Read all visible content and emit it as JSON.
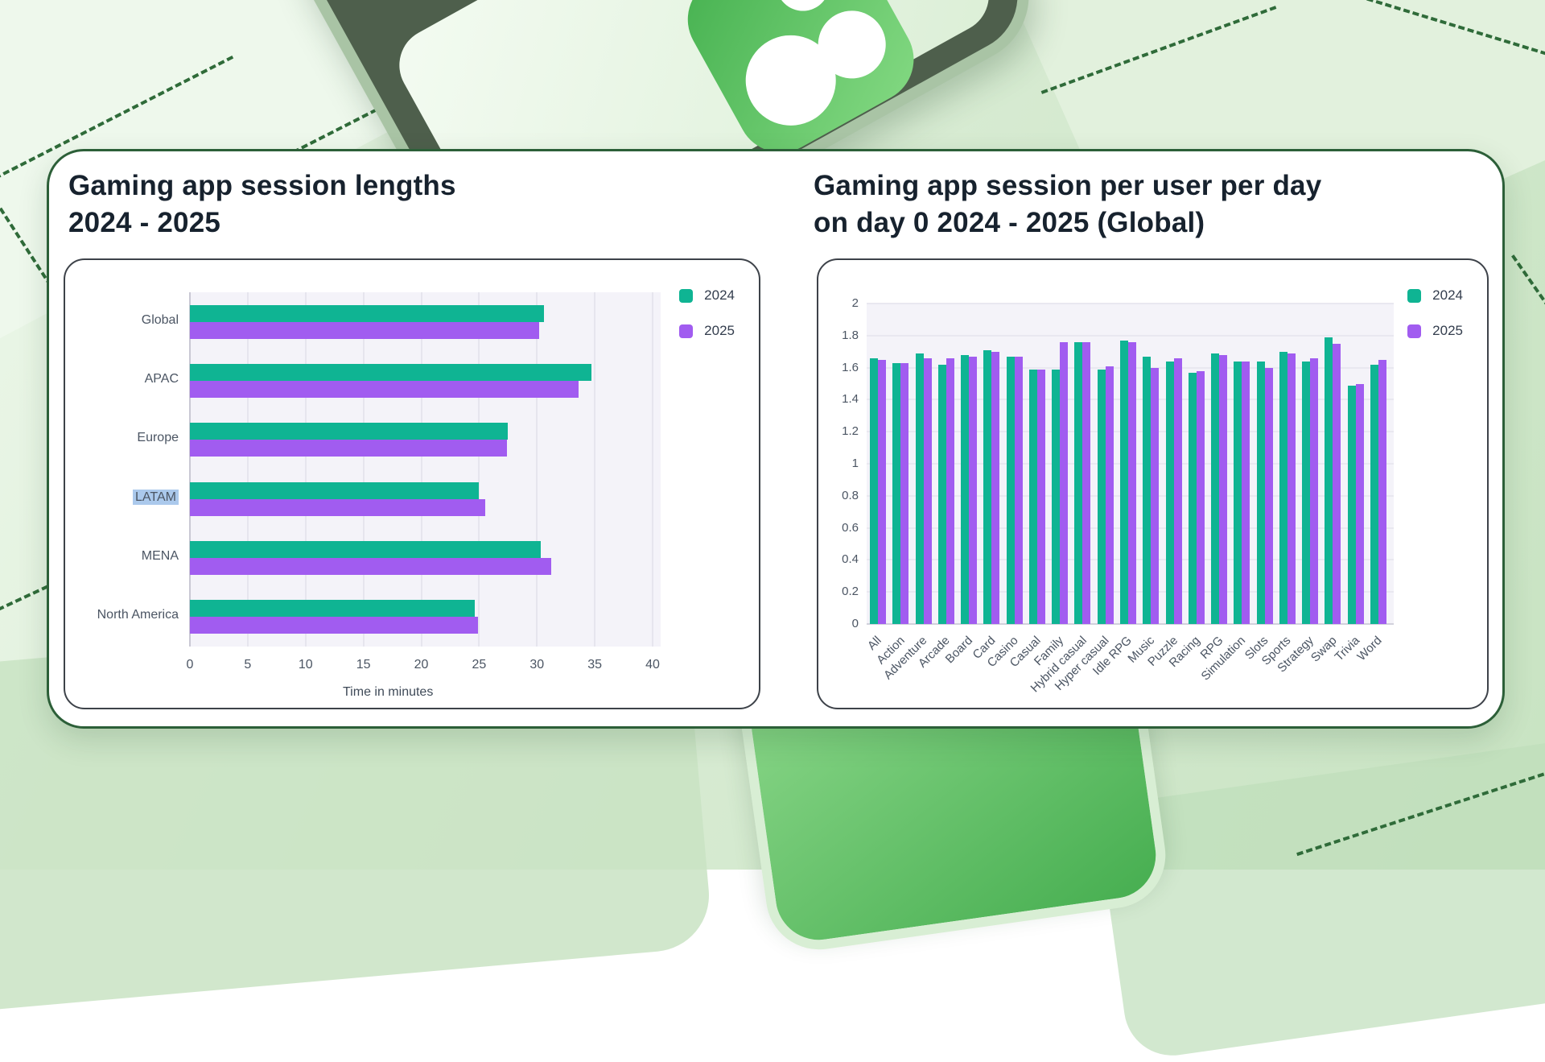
{
  "background": {
    "base_color": "#d9ecd4",
    "dash_line_color": "#2f6b39",
    "phone_color": "#57c45f",
    "decor": [
      "phone-front-mockup",
      "phone-back-mockup",
      "dashed-diamond-outlines"
    ]
  },
  "card": {
    "background": "#ffffff",
    "border_color": "#2c5f38"
  },
  "legend": {
    "items": [
      {
        "label": "2024",
        "color": "#0fb493"
      },
      {
        "label": "2025",
        "color": "#a15cf0"
      }
    ]
  },
  "chart_data": [
    {
      "type": "bar",
      "orientation": "horizontal",
      "title": "Gaming app session lengths 2024 - 2025",
      "title_lines": [
        "Gaming app session lengths",
        "2024 - 2025"
      ],
      "categories": [
        "Global",
        "APAC",
        "Europe",
        "LATAM",
        "MENA",
        "North America"
      ],
      "series": [
        {
          "name": "2024",
          "color": "#0fb493",
          "values": [
            30.6,
            34.7,
            27.5,
            25.0,
            30.3,
            24.6
          ]
        },
        {
          "name": "2025",
          "color": "#a15cf0",
          "values": [
            30.2,
            33.6,
            27.4,
            25.5,
            31.2,
            24.9
          ]
        }
      ],
      "xlabel": "Time in minutes",
      "xlim": [
        0,
        40
      ],
      "x_ticks": [
        0,
        5,
        10,
        15,
        20,
        25,
        30,
        35,
        40
      ],
      "grid": true,
      "legend_position": "top-right",
      "highlighted_category": "LATAM",
      "highlight_color": "#abc9ec"
    },
    {
      "type": "bar",
      "orientation": "vertical",
      "title": "Gaming app session per user per day on day 0 2024 - 2025 (Global)",
      "title_lines": [
        "Gaming app session per user per day",
        "on day 0 2024 - 2025 (Global)"
      ],
      "categories": [
        "All",
        "Action",
        "Adventure",
        "Arcade",
        "Board",
        "Card",
        "Casino",
        "Casual",
        "Family",
        "Hybrid casual",
        "Hyper casual",
        "Idle RPG",
        "Music",
        "Puzzle",
        "Racing",
        "RPG",
        "Simulation",
        "Slots",
        "Sports",
        "Strategy",
        "Swap",
        "Trivia",
        "Word"
      ],
      "series": [
        {
          "name": "2024",
          "color": "#0fb493",
          "values": [
            1.66,
            1.63,
            1.69,
            1.62,
            1.68,
            1.71,
            1.67,
            1.59,
            1.59,
            1.76,
            1.59,
            1.77,
            1.67,
            1.64,
            1.57,
            1.69,
            1.64,
            1.64,
            1.7,
            1.64,
            1.79,
            1.49,
            1.62
          ]
        },
        {
          "name": "2025",
          "color": "#a15cf0",
          "values": [
            1.65,
            1.63,
            1.66,
            1.66,
            1.67,
            1.7,
            1.67,
            1.59,
            1.76,
            1.76,
            1.61,
            1.76,
            1.6,
            1.66,
            1.58,
            1.68,
            1.64,
            1.6,
            1.69,
            1.66,
            1.75,
            1.5,
            1.65
          ]
        }
      ],
      "ylim": [
        0,
        2
      ],
      "y_ticks": [
        0,
        0.2,
        0.4,
        0.6,
        0.8,
        1,
        1.2,
        1.4,
        1.6,
        1.8,
        2
      ],
      "grid": true,
      "legend_position": "top-right"
    }
  ]
}
